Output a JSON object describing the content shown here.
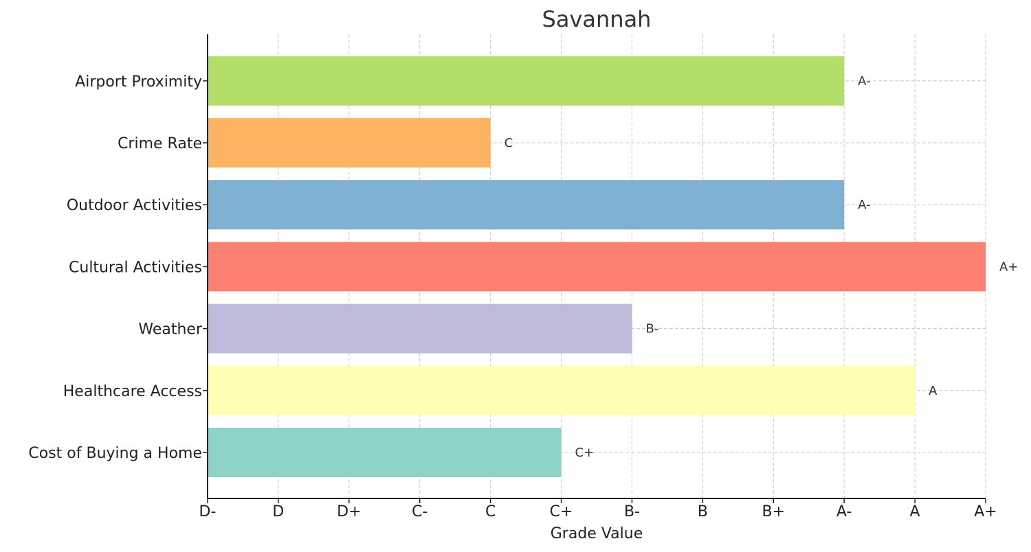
{
  "chart_data": {
    "type": "bar",
    "orientation": "horizontal",
    "title": "Savannah",
    "xlabel": "Grade Value",
    "ylabel": "",
    "grades": [
      "D-",
      "D",
      "D+",
      "C-",
      "C",
      "C+",
      "B-",
      "B",
      "B+",
      "A-",
      "A",
      "A+"
    ],
    "xlim": [
      0,
      11
    ],
    "grid": true,
    "categories": [
      "Cost of Buying a Home",
      "Healthcare Access",
      "Weather",
      "Cultural Activities",
      "Outdoor Activities",
      "Crime Rate",
      "Airport Proximity"
    ],
    "values": [
      5,
      10,
      6,
      11,
      9,
      4,
      9
    ],
    "value_labels": [
      "C+",
      "A",
      "B-",
      "A+",
      "A-",
      "C",
      "A-"
    ],
    "colors": [
      "#8dd3c7",
      "#ffffb3",
      "#bebada",
      "#fb8072",
      "#80b1d3",
      "#fdb462",
      "#b3de69"
    ]
  }
}
